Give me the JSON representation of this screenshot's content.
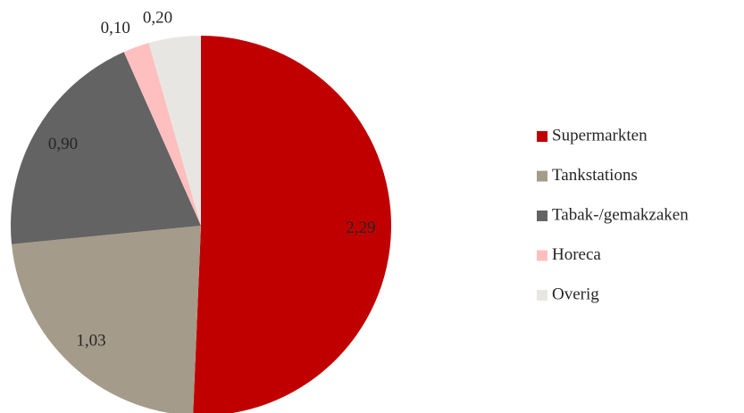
{
  "chart_data": {
    "type": "pie",
    "categories": [
      "Supermarkten",
      "Tankstations",
      "Tabak-/gemakzaken",
      "Horeca",
      "Overig"
    ],
    "values": [
      2.29,
      1.03,
      0.9,
      0.1,
      0.2
    ],
    "value_labels": [
      "2,29",
      "1,03",
      "0,90",
      "0,10",
      "0,20"
    ],
    "colors": [
      "#c00000",
      "#a59b8a",
      "#636363",
      "#ffbfbf",
      "#e8e6e3"
    ],
    "legend": "right"
  }
}
